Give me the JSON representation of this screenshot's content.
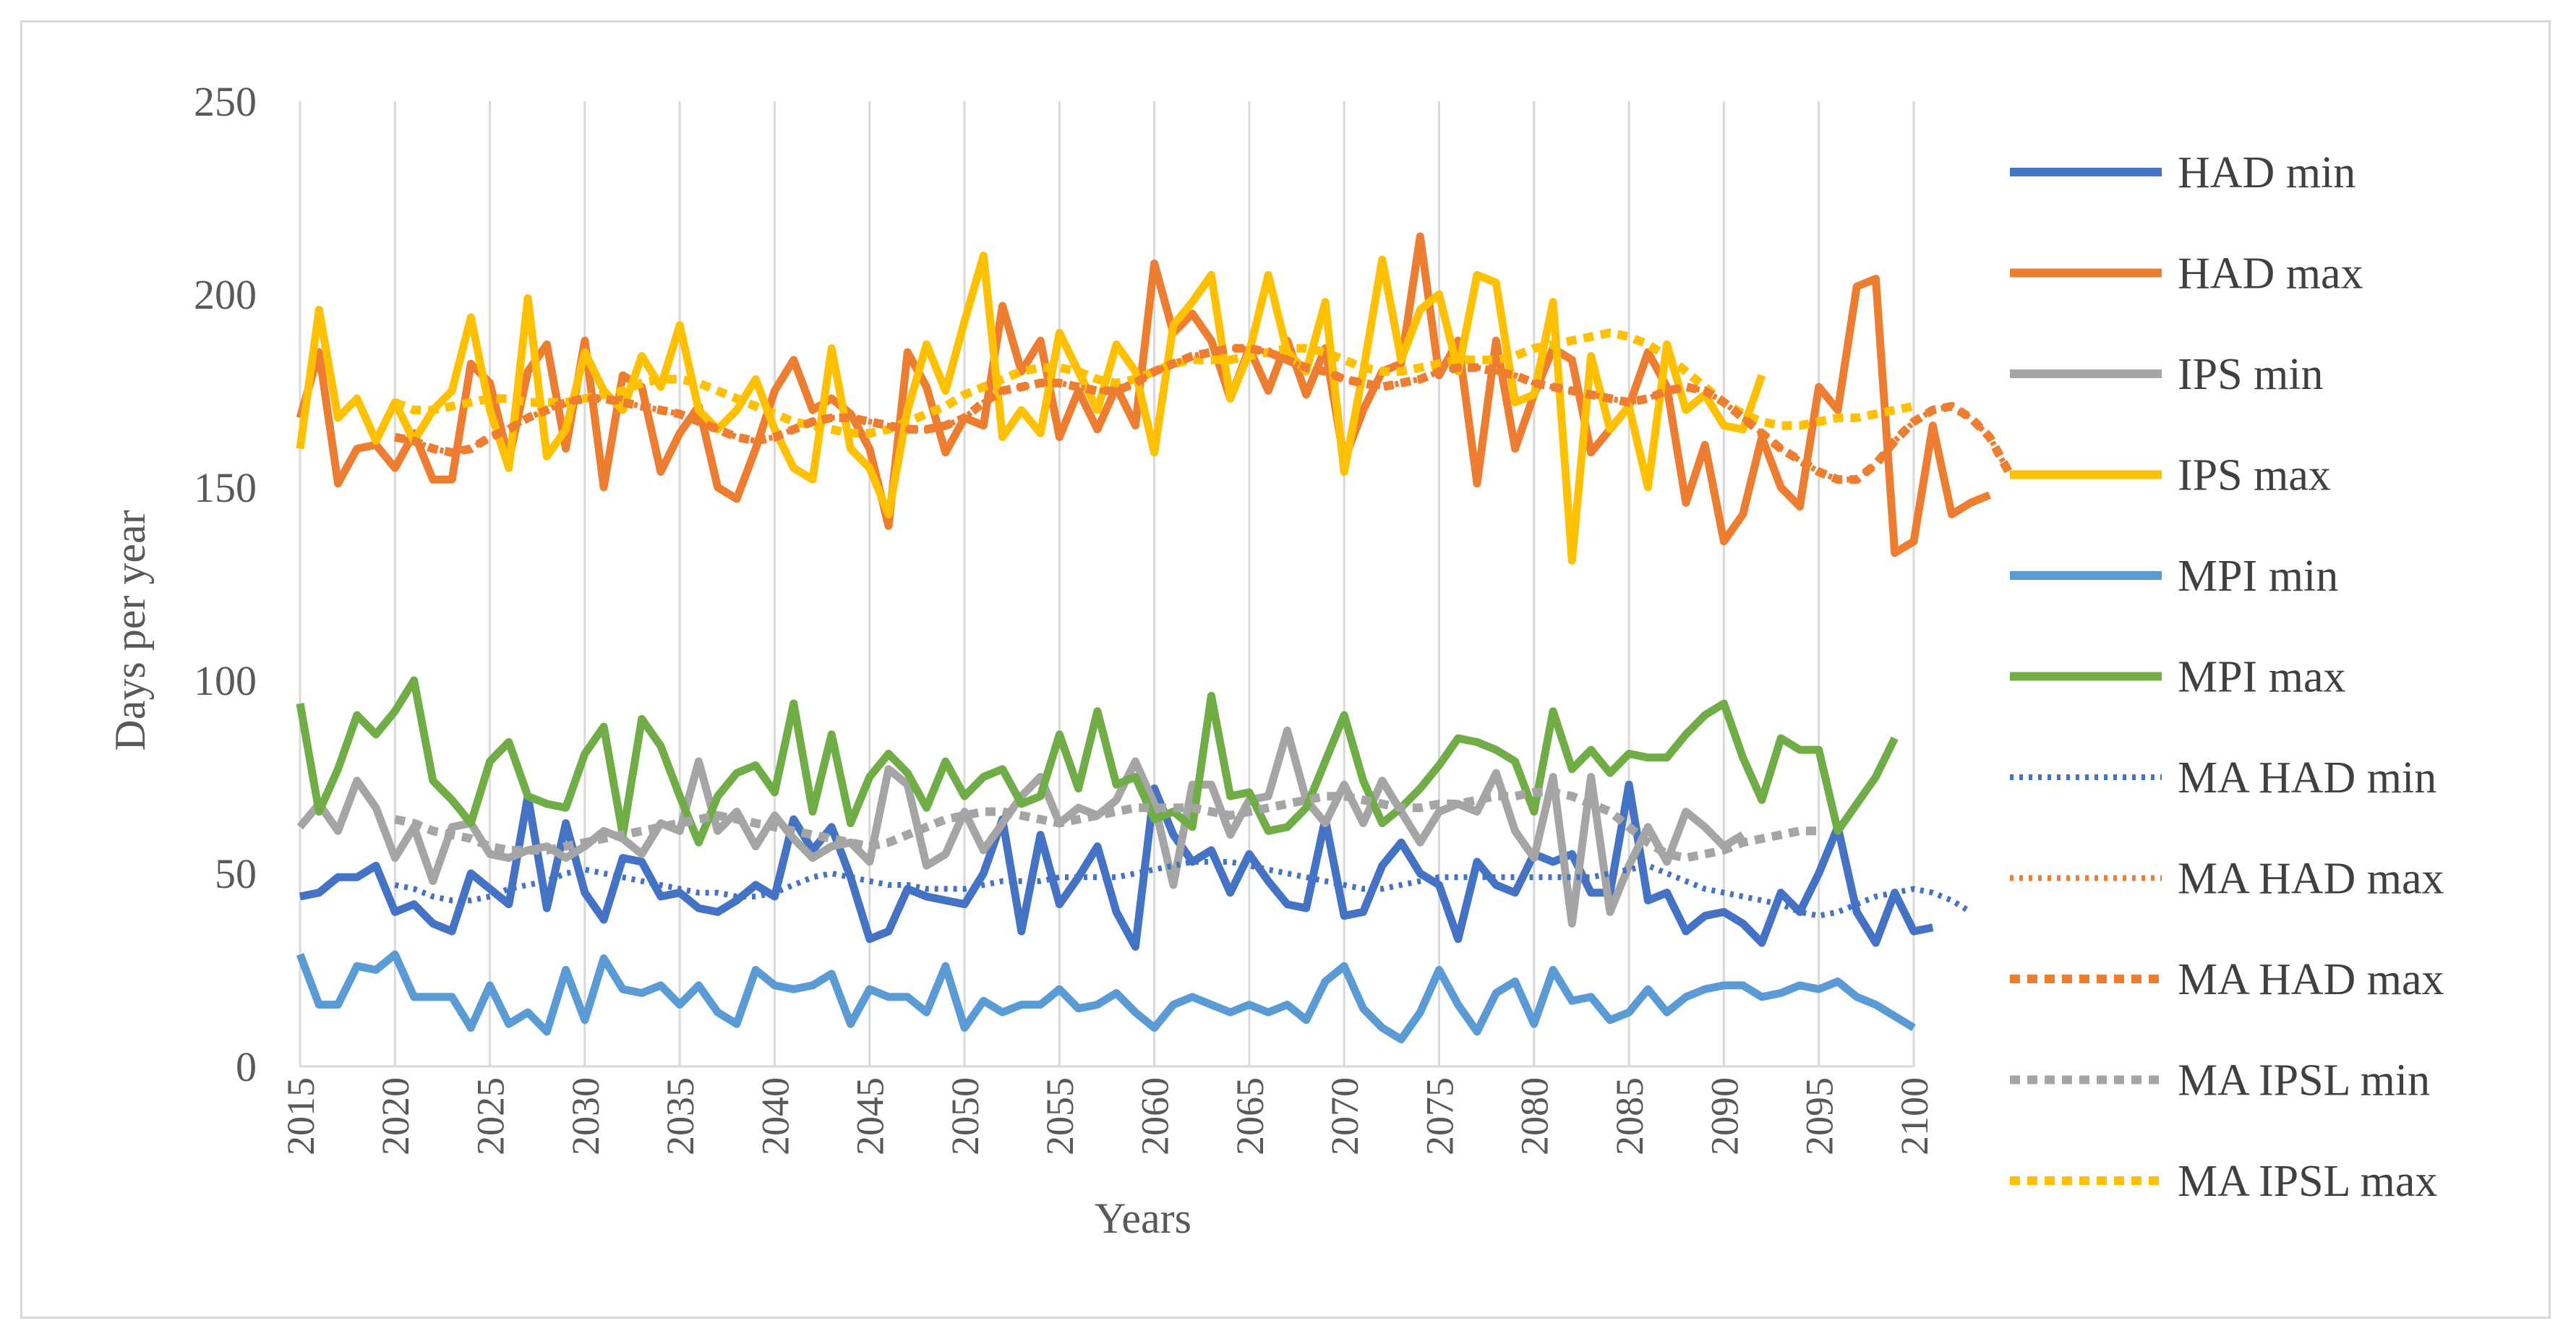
{
  "chart_data": {
    "type": "line",
    "title": "",
    "xlabel": "Years",
    "ylabel": "Days per year",
    "xlim": [
      2015,
      2100
    ],
    "ylim": [
      0,
      250
    ],
    "xticks": [
      "2015",
      "2020",
      "2025",
      "2030",
      "2035",
      "2040",
      "2045",
      "2050",
      "2055",
      "2060",
      "2065",
      "2070",
      "2075",
      "2080",
      "2085",
      "2090",
      "2095",
      "2100"
    ],
    "yticks": [
      "0",
      "50",
      "100",
      "150",
      "200",
      "250"
    ],
    "grid": "vertical",
    "legend_position": "right",
    "x_start": 2015,
    "series": [
      {
        "name": "HAD min",
        "color": "#4472C4",
        "style": "solid",
        "values": [
          44,
          45,
          49,
          49,
          52,
          40,
          42,
          37,
          35,
          50,
          46,
          42,
          70,
          41,
          63,
          45,
          38,
          54,
          53,
          44,
          45,
          41,
          40,
          43,
          47,
          44,
          64,
          56,
          62,
          49,
          33,
          35,
          46,
          44,
          43,
          42,
          50,
          64,
          35,
          60,
          42,
          49,
          57,
          40,
          31,
          72,
          60,
          53,
          56,
          45,
          55,
          48,
          42,
          41,
          64,
          39,
          40,
          52,
          58,
          50,
          47,
          33,
          53,
          47,
          45,
          55,
          53,
          55,
          45,
          45,
          73,
          43,
          45,
          35,
          39,
          40,
          37,
          32,
          45,
          40,
          50,
          62,
          40,
          32,
          45,
          35,
          36
        ]
      },
      {
        "name": "HAD max",
        "color": "#ED7D31",
        "style": "solid",
        "values": [
          168,
          185,
          151,
          160,
          161,
          155,
          164,
          152,
          152,
          182,
          177,
          157,
          180,
          187,
          160,
          188,
          150,
          179,
          176,
          154,
          164,
          171,
          150,
          147,
          160,
          175,
          183,
          170,
          173,
          169,
          160,
          140,
          185,
          176,
          159,
          168,
          166,
          197,
          180,
          188,
          163,
          175,
          165,
          176,
          166,
          208,
          190,
          195,
          188,
          173,
          186,
          175,
          188,
          174,
          186,
          157,
          170,
          180,
          182,
          215,
          179,
          188,
          151,
          188,
          160,
          174,
          186,
          183,
          159,
          165,
          171,
          185,
          176,
          146,
          161,
          136,
          143,
          163,
          150,
          145,
          176,
          170,
          202,
          204,
          133,
          136,
          166,
          143,
          146,
          148
        ]
      },
      {
        "name": "IPS min",
        "color": "#A5A5A5",
        "style": "solid",
        "values": [
          62,
          68,
          61,
          74,
          67,
          54,
          62,
          48,
          62,
          63,
          55,
          54,
          56,
          57,
          54,
          57,
          61,
          59,
          55,
          63,
          61,
          79,
          61,
          66,
          57,
          65,
          59,
          54,
          57,
          58,
          53,
          77,
          73,
          52,
          55,
          66,
          56,
          63,
          70,
          75,
          63,
          67,
          65,
          69,
          79,
          68,
          47,
          73,
          73,
          60,
          69,
          70,
          87,
          69,
          63,
          73,
          63,
          74,
          66,
          58,
          66,
          68,
          66,
          76,
          61,
          54,
          75,
          37,
          75,
          40,
          52,
          62,
          53,
          66,
          62,
          57,
          60
        ]
      },
      {
        "name": "IPS max",
        "color": "#FFC000",
        "style": "solid",
        "values": [
          160,
          196,
          168,
          173,
          162,
          172,
          162,
          170,
          175,
          194,
          170,
          155,
          199,
          158,
          165,
          185,
          175,
          170,
          184,
          176,
          192,
          170,
          165,
          170,
          178,
          165,
          155,
          152,
          186,
          160,
          155,
          143,
          170,
          187,
          175,
          193,
          210,
          163,
          170,
          164,
          190,
          180,
          170,
          187,
          180,
          159,
          192,
          198,
          205,
          173,
          185,
          205,
          185,
          180,
          198,
          154,
          180,
          209,
          183,
          196,
          200,
          180,
          205,
          203,
          172,
          174,
          198,
          131,
          184,
          165,
          171,
          150,
          187,
          170,
          174,
          166,
          165,
          179
        ]
      },
      {
        "name": "MPI min",
        "color": "#5B9BD5",
        "style": "solid",
        "values": [
          29,
          16,
          16,
          26,
          25,
          29,
          18,
          18,
          18,
          10,
          21,
          11,
          14,
          9,
          25,
          12,
          28,
          20,
          19,
          21,
          16,
          21,
          14,
          11,
          25,
          21,
          20,
          21,
          24,
          11,
          20,
          18,
          18,
          14,
          26,
          10,
          17,
          14,
          16,
          16,
          20,
          15,
          16,
          19,
          14,
          10,
          16,
          18,
          16,
          14,
          16,
          14,
          16,
          12,
          22,
          26,
          15,
          10,
          7,
          14,
          25,
          16,
          9,
          19,
          22,
          11,
          25,
          17,
          18,
          12,
          14,
          20,
          14,
          18,
          20,
          21,
          21,
          18,
          19,
          21,
          20,
          22,
          18,
          16,
          13,
          10
        ]
      },
      {
        "name": "MPI max",
        "color": "#70AD47",
        "style": "solid",
        "values": [
          94,
          66,
          77,
          91,
          86,
          92,
          100,
          74,
          69,
          63,
          79,
          84,
          70,
          68,
          67,
          81,
          88,
          60,
          90,
          83,
          70,
          58,
          70,
          76,
          78,
          71,
          94,
          66,
          86,
          63,
          75,
          81,
          76,
          67,
          79,
          70,
          75,
          77,
          68,
          70,
          86,
          72,
          92,
          73,
          75,
          64,
          66,
          62,
          96,
          70,
          71,
          61,
          62,
          67,
          79,
          91,
          74,
          63,
          67,
          72,
          78,
          85,
          84,
          82,
          79,
          66,
          92,
          77,
          82,
          76,
          81,
          80,
          80,
          86,
          91,
          94,
          80,
          69,
          85,
          82,
          82,
          61,
          68,
          75,
          85
        ]
      },
      {
        "name": "MA HAD min",
        "color": "#4472C4",
        "style": "dotted",
        "values": [
          null,
          null,
          null,
          null,
          null,
          47,
          46,
          44,
          43,
          43,
          44,
          46,
          47,
          48,
          50,
          51,
          50,
          49,
          48,
          47,
          46,
          45,
          45,
          44,
          44,
          45,
          47,
          49,
          50,
          49,
          48,
          47,
          47,
          46,
          46,
          46,
          47,
          48,
          48,
          48,
          49,
          49,
          49,
          49,
          50,
          51,
          52,
          53,
          53,
          53,
          52,
          51,
          50,
          49,
          48,
          47,
          46,
          46,
          47,
          48,
          49,
          49,
          49,
          49,
          49,
          49,
          49,
          49,
          49,
          50,
          51,
          52,
          50,
          48,
          46,
          45,
          44,
          43,
          42,
          40,
          39,
          40,
          42,
          44,
          45,
          46,
          45,
          43,
          40
        ]
      },
      {
        "name": "MA HAD max",
        "color": "#ED7D31",
        "style": "dotted",
        "values": [
          null,
          null,
          null,
          null,
          null,
          163,
          162,
          160,
          159,
          160,
          163,
          165,
          168,
          170,
          172,
          173,
          173,
          172,
          171,
          170,
          169,
          167,
          165,
          163,
          162,
          163,
          165,
          167,
          168,
          168,
          167,
          166,
          165,
          165,
          166,
          168,
          172,
          175,
          176,
          177,
          177,
          176,
          175,
          175,
          177,
          180,
          182,
          184,
          185,
          186,
          186,
          185,
          183,
          181,
          180,
          178,
          177,
          176,
          177,
          178,
          180,
          181,
          181,
          180,
          179,
          177,
          176,
          175,
          174,
          173,
          172,
          173,
          175,
          176,
          175,
          172,
          168,
          164,
          160,
          157,
          154,
          152,
          152,
          156,
          162,
          167,
          170,
          171,
          168,
          163,
          154
        ]
      },
      {
        "name": "MA HAD max",
        "color": "#ED7D31",
        "style": "dashed",
        "values": [
          null,
          null,
          null,
          null,
          null,
          163,
          162,
          160,
          159,
          160,
          163,
          165,
          168,
          170,
          172,
          173,
          173,
          172,
          171,
          170,
          169,
          167,
          165,
          163,
          162,
          163,
          165,
          167,
          168,
          168,
          167,
          166,
          165,
          165,
          166,
          168,
          172,
          175,
          176,
          177,
          177,
          176,
          175,
          175,
          177,
          180,
          182,
          184,
          185,
          186,
          186,
          185,
          183,
          181,
          180,
          178,
          177,
          176,
          177,
          178,
          180,
          181,
          181,
          180,
          179,
          177,
          176,
          175,
          174,
          173,
          172,
          173,
          175,
          176,
          175,
          172,
          168,
          164,
          160,
          157,
          154,
          152,
          152,
          156,
          162,
          167,
          170,
          171,
          168,
          163,
          154
        ]
      },
      {
        "name": "MA IPSL min",
        "color": "#A5A5A5",
        "style": "dashed",
        "values": [
          null,
          null,
          null,
          null,
          null,
          64,
          63,
          61,
          60,
          59,
          57,
          56,
          56,
          56,
          57,
          58,
          59,
          60,
          61,
          62,
          63,
          64,
          65,
          64,
          63,
          62,
          61,
          60,
          59,
          58,
          57,
          58,
          60,
          62,
          64,
          65,
          66,
          66,
          65,
          64,
          63,
          64,
          65,
          66,
          67,
          67,
          67,
          67,
          66,
          65,
          66,
          67,
          68,
          69,
          70,
          70,
          69,
          68,
          67,
          67,
          68,
          68,
          69,
          70,
          70,
          71,
          71,
          70,
          68,
          66,
          62,
          58,
          55,
          54,
          55,
          56,
          58,
          59,
          60,
          61,
          61
        ]
      },
      {
        "name": "MA IPSL max",
        "color": "#FFC000",
        "style": "dashed",
        "values": [
          null,
          null,
          null,
          null,
          null,
          172,
          170,
          170,
          171,
          172,
          173,
          173,
          172,
          172,
          172,
          173,
          174,
          175,
          177,
          178,
          178,
          177,
          175,
          173,
          171,
          169,
          167,
          166,
          165,
          164,
          164,
          165,
          167,
          169,
          171,
          174,
          176,
          178,
          180,
          181,
          181,
          180,
          178,
          177,
          178,
          180,
          182,
          183,
          183,
          183,
          184,
          185,
          186,
          186,
          185,
          183,
          181,
          180,
          180,
          181,
          182,
          183,
          183,
          183,
          184,
          186,
          187,
          188,
          189,
          190,
          189,
          187,
          184,
          180,
          176,
          172,
          169,
          167,
          166,
          166,
          167,
          168,
          168,
          169,
          170,
          171
        ]
      }
    ]
  }
}
